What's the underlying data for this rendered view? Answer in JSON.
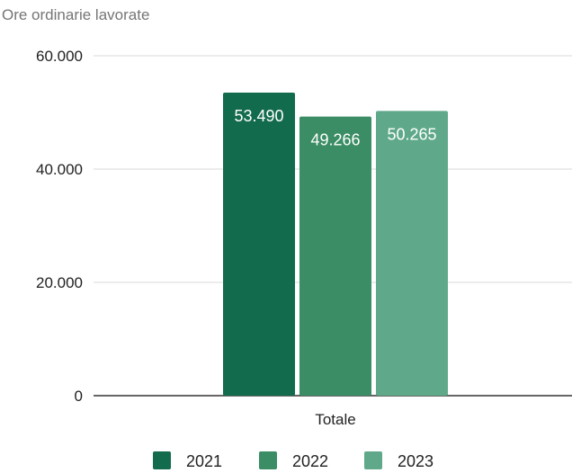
{
  "chart_data": {
    "type": "bar",
    "title": "Ore ordinarie lavorate",
    "categories": [
      "Totale"
    ],
    "series": [
      {
        "name": "2021",
        "values": [
          53490
        ],
        "label": "53.490",
        "color": "#136b4d"
      },
      {
        "name": "2022",
        "values": [
          49266
        ],
        "label": "49.266",
        "color": "#3a8d64"
      },
      {
        "name": "2023",
        "values": [
          50265
        ],
        "label": "50.265",
        "color": "#5fa98a"
      }
    ],
    "ylim": [
      0,
      60000
    ],
    "yticks": [
      {
        "value": 0,
        "label": "0"
      },
      {
        "value": 20000,
        "label": "20.000"
      },
      {
        "value": 40000,
        "label": "40.000"
      },
      {
        "value": 60000,
        "label": "60.000"
      }
    ],
    "grid": true,
    "legend_position": "bottom"
  }
}
